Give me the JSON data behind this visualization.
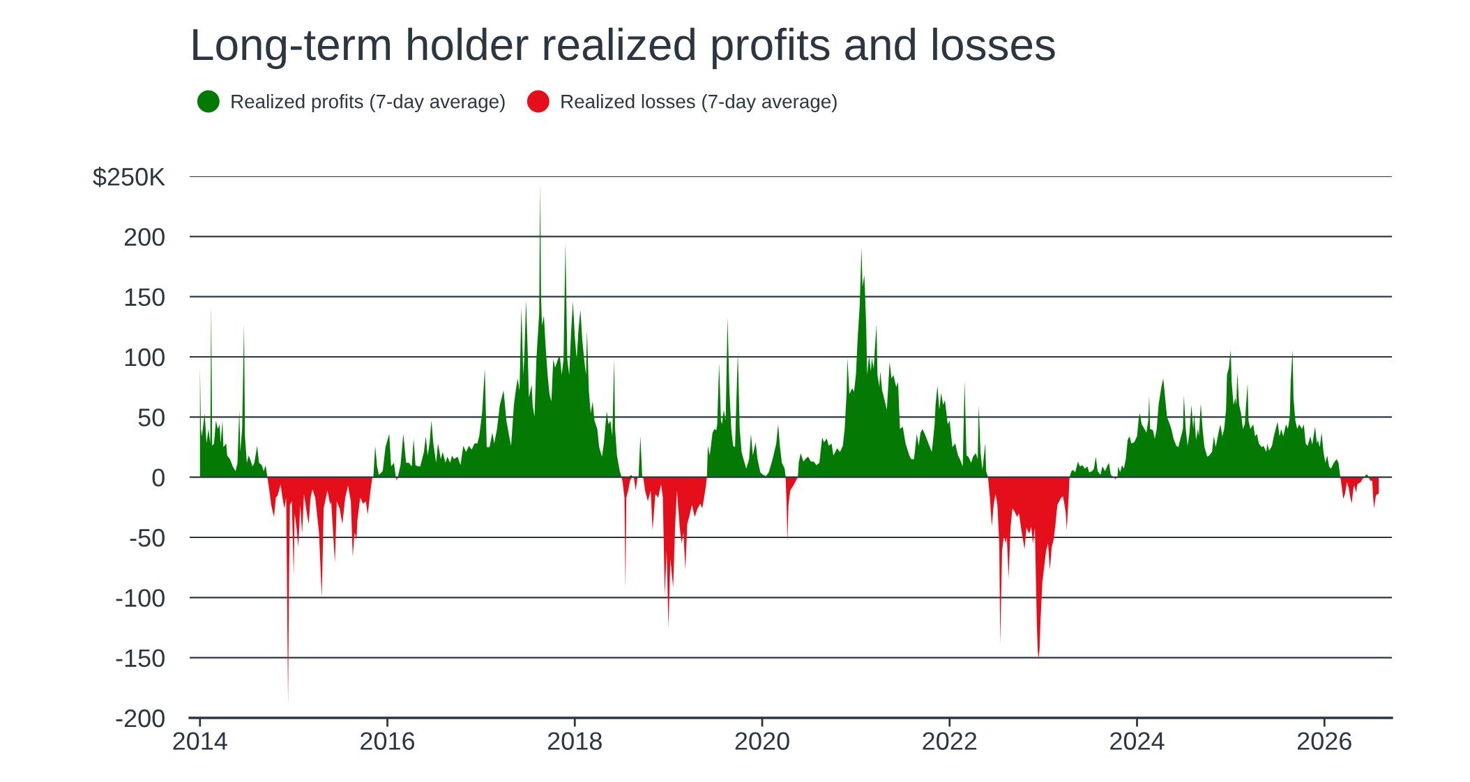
{
  "chart_data": {
    "type": "area",
    "title": "Long-term holder realized profits and losses",
    "xlim": [
      2013.89,
      2026.72
    ],
    "xticks": [
      2014,
      2016,
      2018,
      2020,
      2022,
      2024,
      2026
    ],
    "ylim": [
      -200,
      250
    ],
    "yticks": [
      {
        "value": 250,
        "label": "$250K"
      },
      200,
      150,
      100,
      50,
      0,
      -50,
      -100,
      -150,
      -200
    ],
    "grid": "y",
    "legend": "top left",
    "series": [
      {
        "name": "Realized profits (7-day average)",
        "color": "#037a03",
        "x": [
          2014.0,
          2014.01,
          2014.02,
          2014.05,
          2014.07,
          2014.09,
          2014.11,
          2014.12,
          2014.13,
          2014.15,
          2014.17,
          2014.19,
          2014.21,
          2014.22,
          2014.24,
          2014.25,
          2014.28,
          2014.29,
          2014.32,
          2014.35,
          2014.38,
          2014.4,
          2014.42,
          2014.43,
          2014.45,
          2014.47,
          2014.48,
          2014.5,
          2014.52,
          2014.54,
          2014.56,
          2014.58,
          2014.61,
          2014.63,
          2014.66,
          2014.68,
          2014.7,
          2014.72,
          2015.85,
          2015.87,
          2015.89,
          2015.91,
          2015.95,
          2015.98,
          2016.02,
          2016.04,
          2016.07,
          2016.09,
          2016.11,
          2016.14,
          2016.17,
          2016.2,
          2016.23,
          2016.26,
          2016.28,
          2016.3,
          2016.33,
          2016.35,
          2016.39,
          2016.41,
          2016.43,
          2016.45,
          2016.47,
          2016.49,
          2016.52,
          2016.54,
          2016.57,
          2016.59,
          2016.62,
          2016.64,
          2016.67,
          2016.69,
          2016.71,
          2016.75,
          2016.78,
          2016.81,
          2016.84,
          2016.87,
          2016.9,
          2016.93,
          2016.96,
          2016.98,
          2017.01,
          2017.04,
          2017.06,
          2017.09,
          2017.12,
          2017.14,
          2017.17,
          2017.2,
          2017.24,
          2017.27,
          2017.3,
          2017.32,
          2017.35,
          2017.37,
          2017.39,
          2017.41,
          2017.43,
          2017.45,
          2017.46,
          2017.48,
          2017.5,
          2017.51,
          2017.54,
          2017.55,
          2017.57,
          2017.59,
          2017.62,
          2017.63,
          2017.64,
          2017.65,
          2017.67,
          2017.69,
          2017.71,
          2017.73,
          2017.75,
          2017.77,
          2017.79,
          2017.82,
          2017.84,
          2017.86,
          2017.88,
          2017.9,
          2017.92,
          2017.94,
          2017.96,
          2017.98,
          2018.0,
          2018.02,
          2018.04,
          2018.06,
          2018.08,
          2018.1,
          2018.12,
          2018.13,
          2018.15,
          2018.17,
          2018.19,
          2018.21,
          2018.24,
          2018.26,
          2018.29,
          2018.31,
          2018.34,
          2018.36,
          2018.38,
          2018.4,
          2018.42,
          2018.43,
          2018.45,
          2018.48,
          2018.5,
          2018.58,
          2018.6,
          2018.62,
          2018.68,
          2018.7,
          2018.72,
          2019.41,
          2019.42,
          2019.44,
          2019.47,
          2019.49,
          2019.51,
          2019.52,
          2019.54,
          2019.56,
          2019.57,
          2019.59,
          2019.61,
          2019.63,
          2019.65,
          2019.67,
          2019.69,
          2019.71,
          2019.74,
          2019.76,
          2019.78,
          2019.8,
          2019.83,
          2019.86,
          2019.88,
          2019.9,
          2019.93,
          2019.95,
          2019.98,
          2020.01,
          2020.04,
          2020.07,
          2020.1,
          2020.12,
          2020.15,
          2020.17,
          2020.19,
          2020.21,
          2020.24,
          2020.25,
          2020.38,
          2020.39,
          2020.41,
          2020.44,
          2020.46,
          2020.49,
          2020.52,
          2020.55,
          2020.58,
          2020.61,
          2020.64,
          2020.66,
          2020.69,
          2020.71,
          2020.74,
          2020.76,
          2020.8,
          2020.83,
          2020.86,
          2020.88,
          2020.9,
          2020.91,
          2020.93,
          2020.96,
          2020.98,
          2021.0,
          2021.02,
          2021.04,
          2021.06,
          2021.07,
          2021.09,
          2021.11,
          2021.12,
          2021.14,
          2021.16,
          2021.17,
          2021.19,
          2021.2,
          2021.22,
          2021.23,
          2021.25,
          2021.26,
          2021.28,
          2021.3,
          2021.33,
          2021.36,
          2021.38,
          2021.4,
          2021.43,
          2021.45,
          2021.47,
          2021.5,
          2021.53,
          2021.57,
          2021.59,
          2021.62,
          2021.65,
          2021.67,
          2021.69,
          2021.71,
          2021.74,
          2021.76,
          2021.79,
          2021.81,
          2021.84,
          2021.85,
          2021.87,
          2021.89,
          2021.91,
          2021.93,
          2021.95,
          2021.98,
          2022.0,
          2022.03,
          2022.06,
          2022.09,
          2022.11,
          2022.14,
          2022.16,
          2022.18,
          2022.2,
          2022.23,
          2022.25,
          2022.28,
          2022.3,
          2022.31,
          2022.33,
          2022.35,
          2022.38,
          2022.39,
          2022.41,
          2023.28,
          2023.3,
          2023.32,
          2023.34,
          2023.37,
          2023.39,
          2023.42,
          2023.44,
          2023.47,
          2023.49,
          2023.52,
          2023.54,
          2023.56,
          2023.58,
          2023.61,
          2023.63,
          2023.66,
          2023.68,
          2023.7,
          2023.72,
          2023.75,
          2023.79,
          2023.8,
          2023.82,
          2023.84,
          2023.86,
          2023.88,
          2023.9,
          2023.92,
          2023.94,
          2023.97,
          2024.0,
          2024.02,
          2024.03,
          2024.05,
          2024.08,
          2024.1,
          2024.12,
          2024.13,
          2024.14,
          2024.17,
          2024.19,
          2024.21,
          2024.23,
          2024.26,
          2024.28,
          2024.3,
          2024.32,
          2024.35,
          2024.37,
          2024.39,
          2024.42,
          2024.44,
          2024.47,
          2024.49,
          2024.5,
          2024.52,
          2024.54,
          2024.56,
          2024.58,
          2024.6,
          2024.61,
          2024.63,
          2024.65,
          2024.66,
          2024.68,
          2024.7,
          2024.72,
          2024.75,
          2024.77,
          2024.8,
          2024.82,
          2024.84,
          2024.87,
          2024.89,
          2024.91,
          2024.93,
          2024.95,
          2024.96,
          2024.98,
          2025.0,
          2025.01,
          2025.03,
          2025.05,
          2025.06,
          2025.07,
          2025.09,
          2025.11,
          2025.13,
          2025.15,
          2025.16,
          2025.18,
          2025.19,
          2025.21,
          2025.24,
          2025.26,
          2025.28,
          2025.3,
          2025.33,
          2025.35,
          2025.38,
          2025.39,
          2025.41,
          2025.44,
          2025.46,
          2025.48,
          2025.5,
          2025.52,
          2025.54,
          2025.56,
          2025.59,
          2025.61,
          2025.63,
          2025.64,
          2025.66,
          2025.67,
          2025.69,
          2025.71,
          2025.73,
          2025.76,
          2025.78,
          2025.8,
          2025.82,
          2025.85,
          2025.87,
          2025.9,
          2025.92,
          2025.93,
          2025.95,
          2025.97,
          2025.99,
          2026.01,
          2026.03,
          2026.05,
          2026.07,
          2026.1,
          2026.13,
          2026.15,
          2026.17,
          2026.43,
          2026.44,
          2026.46,
          2026.47
        ],
        "values": [
          91,
          40,
          34,
          53,
          28,
          40,
          28,
          144,
          26,
          28,
          47,
          40,
          44,
          28,
          47,
          25,
          28,
          18,
          15,
          9,
          5,
          12,
          56,
          21,
          40,
          127,
          34,
          12,
          18,
          14,
          9,
          12,
          26,
          12,
          10,
          5,
          10,
          0,
          0,
          26,
          9,
          2,
          5,
          25,
          36,
          9,
          12,
          0,
          0,
          10,
          36,
          12,
          12,
          9,
          32,
          10,
          9,
          9,
          21,
          34,
          18,
          28,
          47,
          28,
          12,
          28,
          15,
          21,
          12,
          17,
          12,
          18,
          15,
          17,
          10,
          26,
          21,
          26,
          23,
          28,
          28,
          34,
          53,
          90,
          25,
          25,
          37,
          28,
          40,
          60,
          72,
          47,
          34,
          26,
          60,
          72,
          82,
          72,
          141,
          85,
          98,
          147,
          98,
          66,
          77,
          60,
          50,
          98,
          136,
          244,
          149,
          126,
          134,
          107,
          85,
          69,
          63,
          98,
          91,
          98,
          101,
          85,
          98,
          195,
          98,
          85,
          120,
          146,
          117,
          98,
          123,
          139,
          114,
          98,
          85,
          122,
          72,
          53,
          63,
          47,
          40,
          25,
          17,
          28,
          55,
          44,
          47,
          34,
          98,
          40,
          18,
          5,
          0,
          0,
          2,
          0,
          0,
          34,
          0,
          0,
          26,
          18,
          37,
          40,
          39,
          44,
          95,
          47,
          44,
          56,
          47,
          133,
          72,
          40,
          26,
          25,
          104,
          40,
          21,
          15,
          7,
          15,
          36,
          18,
          29,
          15,
          4,
          2,
          1,
          4,
          12,
          18,
          28,
          44,
          25,
          12,
          7,
          0,
          0,
          12,
          20,
          13,
          15,
          17,
          13,
          13,
          10,
          12,
          33,
          29,
          32,
          26,
          28,
          18,
          24,
          21,
          26,
          40,
          69,
          99,
          69,
          74,
          71,
          85,
          117,
          142,
          191,
          158,
          168,
          126,
          85,
          101,
          88,
          99,
          90,
          104,
          127,
          85,
          75,
          88,
          72,
          66,
          56,
          96,
          82,
          85,
          75,
          79,
          40,
          42,
          28,
          18,
          15,
          15,
          36,
          26,
          37,
          40,
          35,
          31,
          25,
          21,
          44,
          60,
          76,
          56,
          70,
          60,
          64,
          44,
          47,
          25,
          28,
          18,
          15,
          9,
          80,
          18,
          17,
          12,
          17,
          20,
          15,
          60,
          21,
          6,
          28,
          5,
          0,
          0,
          5,
          6,
          4,
          13,
          9,
          10,
          7,
          9,
          4,
          5,
          7,
          17,
          5,
          2,
          9,
          5,
          9,
          12,
          2,
          0,
          0,
          9,
          4,
          10,
          7,
          15,
          31,
          34,
          28,
          29,
          34,
          50,
          53,
          44,
          40,
          37,
          47,
          68,
          40,
          39,
          32,
          40,
          60,
          75,
          82,
          66,
          50,
          44,
          39,
          32,
          26,
          25,
          34,
          40,
          68,
          40,
          26,
          37,
          60,
          40,
          53,
          31,
          40,
          34,
          61,
          40,
          25,
          17,
          18,
          21,
          34,
          25,
          37,
          44,
          34,
          40,
          56,
          85,
          91,
          106,
          79,
          60,
          66,
          60,
          87,
          60,
          53,
          40,
          44,
          56,
          78,
          47,
          40,
          44,
          34,
          36,
          28,
          25,
          26,
          21,
          28,
          22,
          26,
          34,
          40,
          46,
          34,
          40,
          34,
          44,
          40,
          50,
          79,
          106,
          66,
          47,
          40,
          44,
          40,
          44,
          28,
          26,
          34,
          27,
          42,
          28,
          31,
          25,
          37,
          21,
          12,
          18,
          9,
          7,
          12,
          15,
          12,
          0,
          0,
          2,
          2,
          0
        ]
      },
      {
        "name": "Realized losses (7-day average)",
        "color": "#e50f1b",
        "x": [
          2014.72,
          2014.74,
          2014.76,
          2014.78,
          2014.79,
          2014.81,
          2014.83,
          2014.86,
          2014.88,
          2014.9,
          2014.92,
          2014.93,
          2014.94,
          2014.95,
          2014.96,
          2014.98,
          2015.0,
          2015.01,
          2015.03,
          2015.05,
          2015.07,
          2015.09,
          2015.11,
          2015.14,
          2015.16,
          2015.18,
          2015.2,
          2015.23,
          2015.27,
          2015.3,
          2015.32,
          2015.36,
          2015.39,
          2015.4,
          2015.44,
          2015.46,
          2015.49,
          2015.52,
          2015.55,
          2015.58,
          2015.61,
          2015.63,
          2015.65,
          2015.67,
          2015.68,
          2015.71,
          2015.74,
          2015.77,
          2015.79,
          2015.82,
          2015.84,
          2016.09,
          2016.1,
          2016.11,
          2018.5,
          2018.51,
          2018.53,
          2018.54,
          2018.55,
          2018.57,
          2018.59,
          2018.61,
          2018.63,
          2018.65,
          2018.67,
          2018.73,
          2018.75,
          2018.78,
          2018.81,
          2018.83,
          2018.86,
          2018.89,
          2018.92,
          2018.94,
          2018.96,
          2018.98,
          2019.0,
          2019.02,
          2019.05,
          2019.07,
          2019.09,
          2019.12,
          2019.14,
          2019.16,
          2019.18,
          2019.2,
          2019.22,
          2019.25,
          2019.28,
          2019.31,
          2019.34,
          2019.36,
          2019.38,
          2019.4,
          2019.41,
          2020.25,
          2020.26,
          2020.27,
          2020.28,
          2020.3,
          2020.34,
          2020.36,
          2020.38,
          2022.41,
          2022.43,
          2022.45,
          2022.47,
          2022.49,
          2022.51,
          2022.53,
          2022.54,
          2022.56,
          2022.58,
          2022.6,
          2022.61,
          2022.63,
          2022.65,
          2022.67,
          2022.69,
          2022.72,
          2022.74,
          2022.77,
          2022.8,
          2022.82,
          2022.85,
          2022.87,
          2022.89,
          2022.91,
          2022.93,
          2022.94,
          2022.95,
          2022.96,
          2022.97,
          2022.99,
          2023.01,
          2023.03,
          2023.05,
          2023.07,
          2023.09,
          2023.11,
          2023.13,
          2023.15,
          2023.17,
          2023.19,
          2023.21,
          2023.22,
          2023.24,
          2023.25,
          2023.27,
          2023.28,
          2023.76,
          2023.77,
          2023.78,
          2026.17,
          2026.19,
          2026.2,
          2026.22,
          2026.24,
          2026.26,
          2026.27,
          2026.29,
          2026.31,
          2026.32,
          2026.34,
          2026.35,
          2026.37,
          2026.39,
          2026.41,
          2026.43,
          2026.47,
          2026.49,
          2026.51,
          2026.52,
          2026.53,
          2026.54,
          2026.55,
          2026.57,
          2026.58
        ],
        "values": [
          0,
          -11,
          -23,
          -30,
          -33,
          -17,
          -15,
          -6,
          -17,
          -26,
          -17,
          -100,
          -189,
          -87,
          -23,
          -20,
          -82,
          -30,
          -42,
          -58,
          -23,
          -47,
          -14,
          -30,
          -39,
          -17,
          -10,
          -17,
          -46,
          -100,
          -26,
          -11,
          -23,
          -20,
          -71,
          -20,
          -26,
          -39,
          -17,
          -7,
          -20,
          -66,
          -46,
          -52,
          -36,
          -17,
          -22,
          -20,
          -31,
          -11,
          0,
          0,
          -3,
          0,
          0,
          -4,
          -17,
          -93,
          -17,
          -11,
          -3,
          0,
          0,
          -11,
          0,
          0,
          -11,
          -20,
          -11,
          -44,
          -14,
          -17,
          -6,
          -17,
          -98,
          -61,
          -125,
          -68,
          -92,
          -42,
          -11,
          -42,
          -55,
          -46,
          -77,
          -39,
          -33,
          -23,
          -33,
          -26,
          -22,
          -26,
          -17,
          -7,
          0,
          0,
          -23,
          -54,
          -23,
          -11,
          -6,
          -3,
          0,
          0,
          -17,
          -41,
          -23,
          -14,
          -23,
          -55,
          -139,
          -61,
          -49,
          -55,
          -49,
          -84,
          -42,
          -26,
          -28,
          -33,
          -30,
          -46,
          -60,
          -42,
          -47,
          -41,
          -55,
          -42,
          -119,
          -144,
          -151,
          -143,
          -119,
          -87,
          -74,
          -61,
          -55,
          -77,
          -58,
          -52,
          -39,
          -23,
          -20,
          -17,
          -16,
          -20,
          -30,
          -44,
          -17,
          0,
          0,
          -2,
          0,
          0,
          -11,
          -18,
          -14,
          -4,
          -9,
          -14,
          -22,
          -9,
          -7,
          -13,
          -6,
          -5,
          -4,
          -1,
          0,
          0,
          -3,
          -3,
          -17,
          -26,
          -20,
          -15,
          -14,
          -14
        ]
      }
    ]
  }
}
